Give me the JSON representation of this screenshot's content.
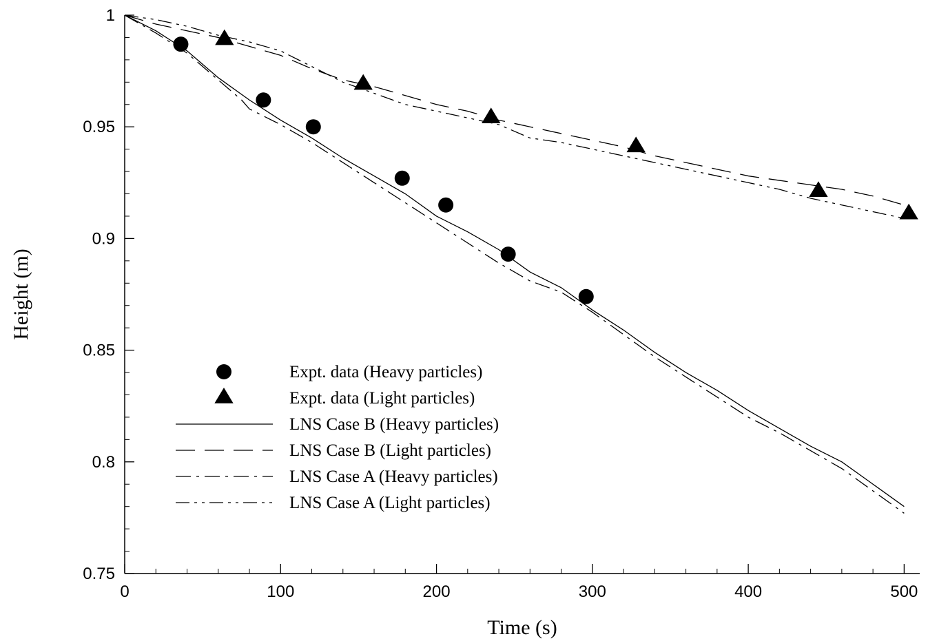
{
  "chart_data": {
    "type": "line",
    "title": "",
    "xlabel": "Time (s)",
    "ylabel": "Height (m)",
    "xlim": [
      0,
      510
    ],
    "ylim": [
      0.75,
      1.0
    ],
    "xticks": [
      0,
      100,
      200,
      300,
      400,
      500
    ],
    "xtick_labels": [
      "0",
      "100",
      "200",
      "300",
      "400",
      "500"
    ],
    "yticks": [
      0.75,
      0.8,
      0.85,
      0.9,
      0.95,
      1.0
    ],
    "ytick_labels": [
      "0.75",
      "0.8",
      "0.85",
      "0.9",
      "0.95",
      "1"
    ],
    "grid": false,
    "legend_position": "lower-left",
    "series": [
      {
        "name": "Expt. data (Heavy particles)",
        "kind": "scatter",
        "marker": "circle",
        "x": [
          36,
          89,
          121,
          178,
          206,
          246,
          296
        ],
        "y": [
          0.987,
          0.962,
          0.95,
          0.927,
          0.915,
          0.893,
          0.874
        ]
      },
      {
        "name": "Expt. data (Light particles)",
        "kind": "scatter",
        "marker": "triangle",
        "x": [
          64,
          153,
          235,
          328,
          445,
          503
        ],
        "y": [
          0.989,
          0.969,
          0.954,
          0.941,
          0.921,
          0.911
        ]
      },
      {
        "name": "LNS Case B (Heavy particles)",
        "kind": "line",
        "dash": "solid",
        "x": [
          0,
          20,
          40,
          60,
          80,
          100,
          120,
          140,
          160,
          180,
          200,
          220,
          240,
          260,
          280,
          300,
          320,
          340,
          360,
          380,
          400,
          420,
          440,
          460,
          480,
          500
        ],
        "y": [
          1.0,
          0.993,
          0.984,
          0.972,
          0.962,
          0.953,
          0.945,
          0.936,
          0.928,
          0.92,
          0.91,
          0.903,
          0.895,
          0.885,
          0.878,
          0.868,
          0.859,
          0.849,
          0.84,
          0.832,
          0.823,
          0.815,
          0.807,
          0.8,
          0.79,
          0.78
        ]
      },
      {
        "name": "LNS Case B (Light particles)",
        "kind": "line",
        "dash": "long-dash",
        "x": [
          0,
          20,
          40,
          60,
          80,
          100,
          120,
          140,
          160,
          180,
          200,
          220,
          240,
          260,
          280,
          300,
          320,
          340,
          360,
          380,
          400,
          420,
          440,
          460,
          480,
          500
        ],
        "y": [
          1.0,
          0.996,
          0.993,
          0.99,
          0.986,
          0.982,
          0.976,
          0.971,
          0.968,
          0.964,
          0.96,
          0.957,
          0.953,
          0.95,
          0.947,
          0.944,
          0.941,
          0.937,
          0.934,
          0.931,
          0.928,
          0.926,
          0.924,
          0.922,
          0.919,
          0.915
        ]
      },
      {
        "name": "LNS Case A (Heavy particles)",
        "kind": "line",
        "dash": "dash-dot",
        "x": [
          0,
          20,
          40,
          60,
          75,
          80,
          100,
          120,
          140,
          160,
          180,
          200,
          220,
          240,
          260,
          280,
          300,
          320,
          340,
          360,
          380,
          400,
          420,
          440,
          460,
          480,
          500
        ],
        "y": [
          1.0,
          0.992,
          0.983,
          0.971,
          0.962,
          0.958,
          0.951,
          0.943,
          0.934,
          0.925,
          0.916,
          0.907,
          0.898,
          0.889,
          0.881,
          0.876,
          0.867,
          0.857,
          0.847,
          0.838,
          0.829,
          0.82,
          0.813,
          0.805,
          0.797,
          0.787,
          0.777
        ]
      },
      {
        "name": "LNS Case A (Light particles)",
        "kind": "line",
        "dash": "dash-dot-dot",
        "x": [
          0,
          20,
          40,
          60,
          80,
          100,
          120,
          140,
          160,
          180,
          200,
          220,
          240,
          260,
          280,
          300,
          320,
          340,
          360,
          380,
          400,
          420,
          440,
          460,
          480,
          500
        ],
        "y": [
          1.0,
          0.998,
          0.995,
          0.991,
          0.988,
          0.984,
          0.977,
          0.97,
          0.965,
          0.96,
          0.957,
          0.954,
          0.951,
          0.945,
          0.943,
          0.94,
          0.937,
          0.934,
          0.931,
          0.928,
          0.925,
          0.922,
          0.918,
          0.915,
          0.912,
          0.909
        ]
      }
    ]
  }
}
